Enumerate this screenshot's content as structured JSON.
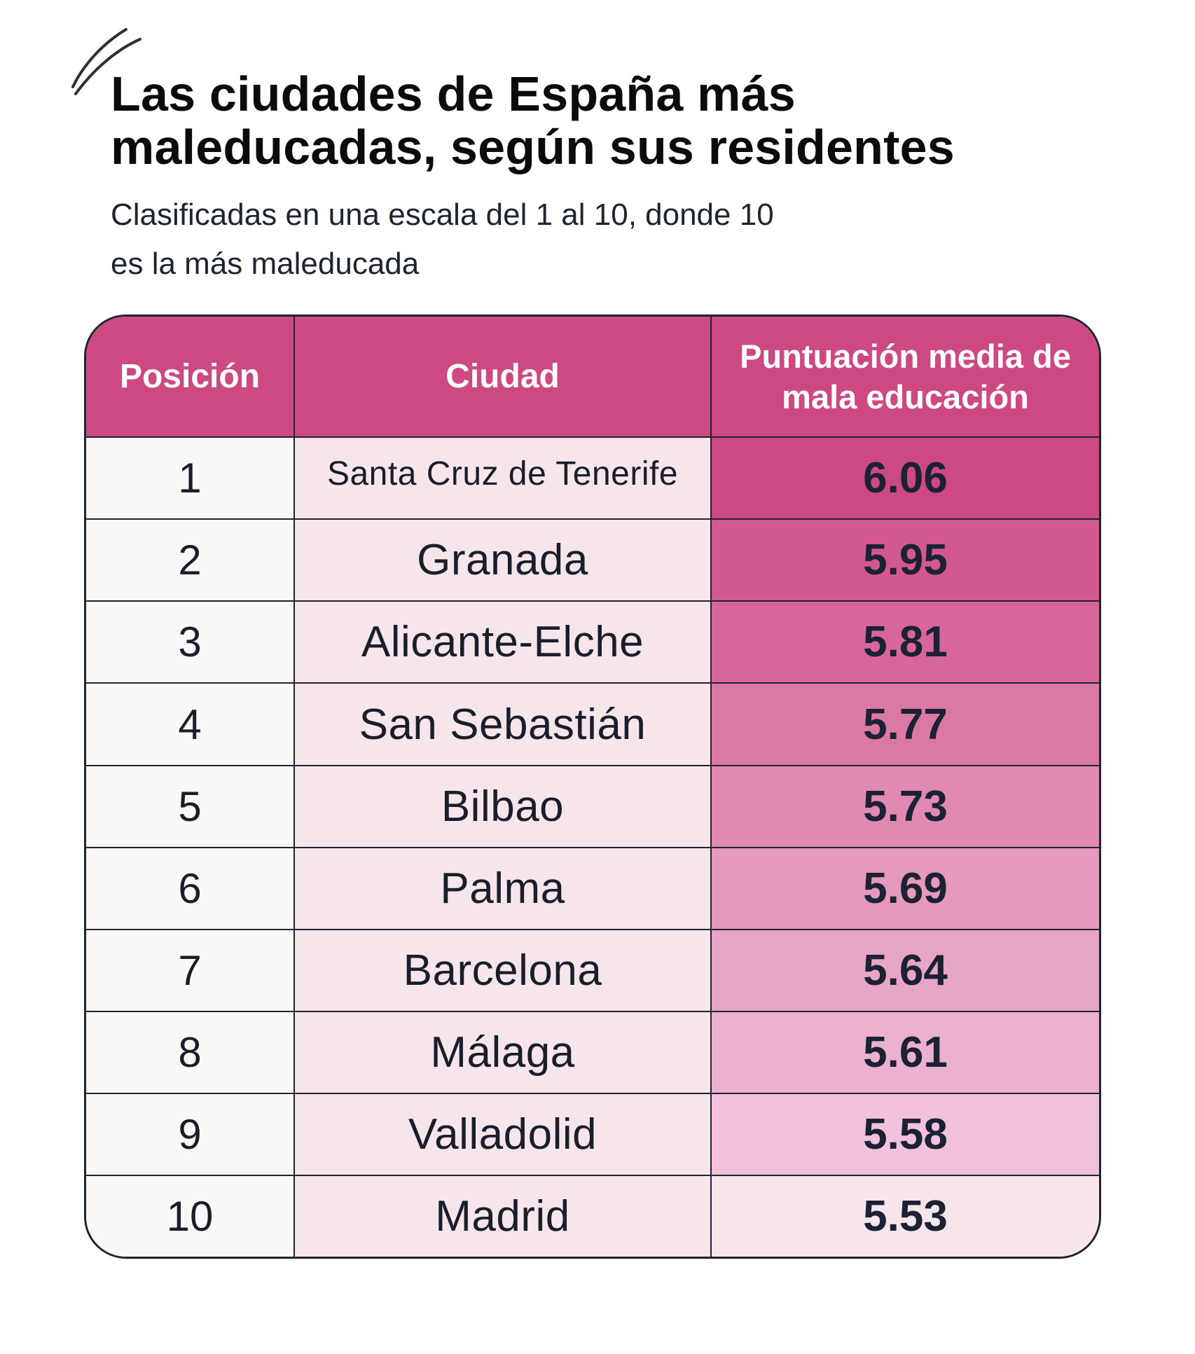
{
  "header": {
    "title_line1": "Las ciudades de España más",
    "title_line2": "maleducadas, según sus residentes",
    "subtitle_line1": "Clasificadas en una escala del 1 al 10, donde 10",
    "subtitle_line2": "es la más maleducada"
  },
  "colors": {
    "header_bg": "#cd4982",
    "position_bg": "#faf8f7",
    "city_bg": "#f6e6ec",
    "border": "#1f2230",
    "score_scale": [
      "#cd4982",
      "#d3588f",
      "#d7669a",
      "#db79a5",
      "#e089b1",
      "#e59abb",
      "#e8a6c6",
      "#ebb2cf",
      "#f2c2dd",
      "#f6e6ec"
    ]
  },
  "chart_data": {
    "type": "table",
    "title": "Las ciudades de España más maleducadas, según sus residentes",
    "subtitle": "Clasificadas en una escala del 1 al 10, donde 10 es la más maleducada",
    "columns": [
      "Posición",
      "Ciudad",
      "Puntuación media de mala educación"
    ],
    "header_score_line1": "Puntuación media de",
    "header_score_line2": "mala educación",
    "rows": [
      {
        "position": "1",
        "city": "Santa Cruz de Tenerife",
        "score": "6.06"
      },
      {
        "position": "2",
        "city": "Granada",
        "score": "5.95"
      },
      {
        "position": "3",
        "city": "Alicante-Elche",
        "score": "5.81"
      },
      {
        "position": "4",
        "city": "San Sebastián",
        "score": "5.77"
      },
      {
        "position": "5",
        "city": "Bilbao",
        "score": "5.73"
      },
      {
        "position": "6",
        "city": "Palma",
        "score": "5.69"
      },
      {
        "position": "7",
        "city": "Barcelona",
        "score": "5.64"
      },
      {
        "position": "8",
        "city": "Málaga",
        "score": "5.61"
      },
      {
        "position": "9",
        "city": "Valladolid",
        "score": "5.58"
      },
      {
        "position": "10",
        "city": "Madrid",
        "score": "5.53"
      }
    ]
  }
}
